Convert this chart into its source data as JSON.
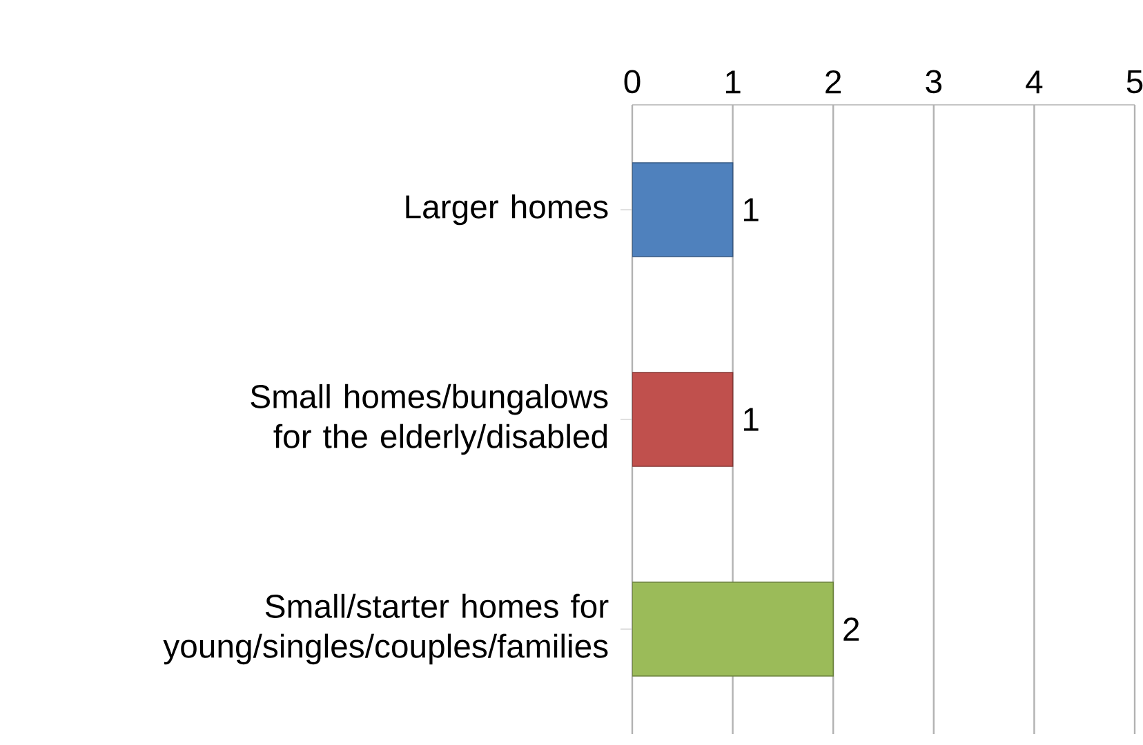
{
  "chart_data": {
    "type": "bar",
    "orientation": "horizontal",
    "categories": [
      "Larger homes",
      "Small homes/bungalows for the elderly/disabled",
      "Small/starter homes for young/singles/couples/families"
    ],
    "values": [
      1,
      1,
      2
    ],
    "colors": [
      "#4f81bd",
      "#c0504d",
      "#9bbb59"
    ],
    "xlim": [
      0,
      5
    ],
    "xticks": [
      0,
      1,
      2,
      3,
      4,
      5
    ],
    "grid": "x",
    "data_labels": true
  }
}
